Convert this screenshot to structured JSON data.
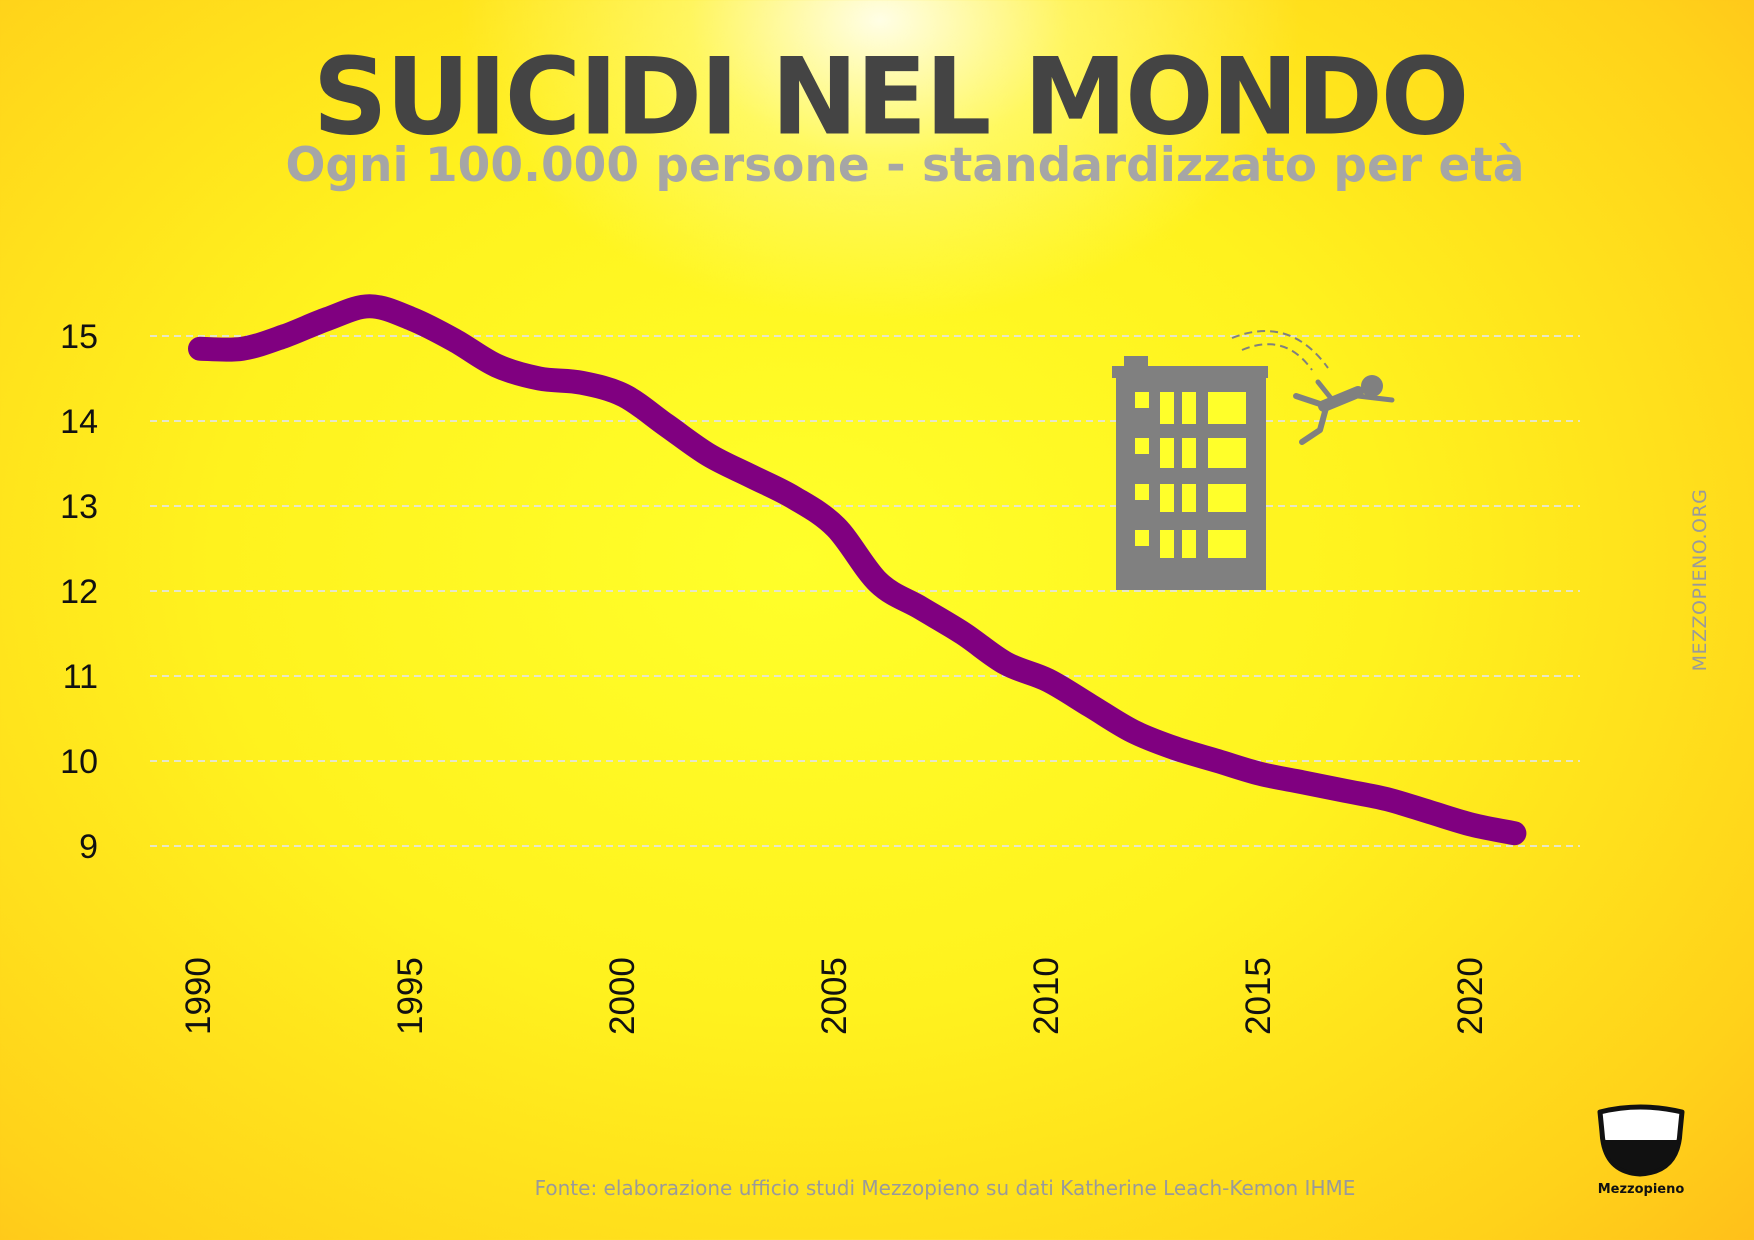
{
  "title": "SUICIDI NEL MONDO",
  "subtitle": "Ogni 100.000 persone - standardizzato per età",
  "watermark": "MEZZOPIENO.ORG",
  "source": "Fonte: elaborazione ufficio studi Mezzopieno su dati  Katherine Leach-Kemon IHME",
  "logo": {
    "text": "Mezzopieno"
  },
  "illustration": {
    "icon": "person-falling-from-building-icon"
  },
  "colors": {
    "background": "#ffff2a",
    "line": "#800080",
    "title": "#444444",
    "subtitle": "#a6a6a6",
    "grid": "#e6e6c8",
    "illustration": "#808080"
  },
  "chart_data": {
    "type": "line",
    "title": "SUICIDI NEL MONDO",
    "subtitle": "Ogni 100.000 persone - standardizzato per età",
    "xlabel": "",
    "ylabel": "",
    "yticks": [
      9,
      10,
      11,
      12,
      13,
      14,
      15
    ],
    "xticks": [
      1990,
      1995,
      2000,
      2005,
      2010,
      2015,
      2020
    ],
    "ylim": [
      9,
      15
    ],
    "xlim": [
      1990,
      2021
    ],
    "grid": "horizontal dashed",
    "legend": "none",
    "series": [
      {
        "x": [
          1990,
          1991,
          1992,
          1993,
          1994,
          1995,
          1996,
          1997,
          1998,
          1999,
          2000,
          2001,
          2002,
          2003,
          2004,
          2005,
          2006,
          2007,
          2008,
          2009,
          2010,
          2011,
          2012,
          2013,
          2014,
          2015,
          2016,
          2017,
          2018,
          2019,
          2020,
          2021
        ],
        "values": [
          14.85,
          14.85,
          15.0,
          15.2,
          15.35,
          15.2,
          14.95,
          14.65,
          14.5,
          14.45,
          14.3,
          13.95,
          13.6,
          13.35,
          13.1,
          12.75,
          12.1,
          11.8,
          11.5,
          11.15,
          10.95,
          10.65,
          10.35,
          10.15,
          10.0,
          9.85,
          9.75,
          9.65,
          9.55,
          9.4,
          9.25,
          9.15
        ]
      }
    ]
  }
}
